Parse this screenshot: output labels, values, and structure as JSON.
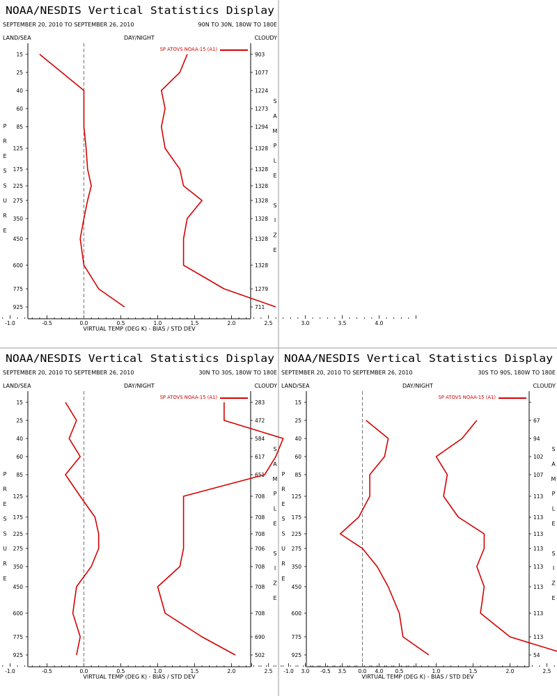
{
  "panels": [
    {
      "title": "NOAA/NESDIS Vertical Statistics Display",
      "date_range": "SEPTEMBER 20, 2010 TO SEPTEMBER 26, 2010",
      "region": "90N TO 30N, 180W TO 180E",
      "header_left": "LAND/SEA",
      "header_mid": "DAY/NIGHT",
      "header_right": "CLOUDY",
      "legend": "SP ATOVS NOAA-15 (A1)",
      "left_vertical_label": "PRESSURE",
      "right_vertical_label": "SAMPLE SIZE",
      "x_axis_label": "VIRTUAL TEMP (DEG K) - BIAS / STD DEV",
      "chart_data": {
        "type": "line",
        "pressure_levels": [
          15,
          25,
          40,
          60,
          85,
          125,
          175,
          225,
          275,
          350,
          450,
          600,
          775,
          925
        ],
        "sample_size": [
          "903",
          "1077",
          "1224",
          "1273",
          "1294",
          "1328",
          "1328",
          "1328",
          "1328",
          "1328",
          "1328",
          "1328",
          "1279",
          "711"
        ],
        "series": [
          {
            "values": [
              -0.6,
              -0.3,
              0.0,
              0.0,
              0.0,
              0.03,
              0.05,
              0.1,
              0.05,
              0.0,
              -0.05,
              0.0,
              0.2,
              0.55
            ]
          },
          {
            "values": [
              1.4,
              1.3,
              1.05,
              1.1,
              1.05,
              1.1,
              1.3,
              1.35,
              1.6,
              1.4,
              1.35,
              1.35,
              1.9,
              2.6
            ]
          }
        ],
        "xlim": [
          -1.5,
          4.5
        ],
        "xticks": [
          "-1.0",
          "-0.5",
          "0.0",
          "0.5",
          "1.0",
          "1.5",
          "2.0",
          "2.5",
          "3.0",
          "3.5",
          "4.0"
        ],
        "line_color": "#d40000"
      }
    },
    {
      "title": "NOAA/NESDIS Vertical Statistics Display",
      "date_range": "SEPTEMBER 20, 2010 TO SEPTEMBER 26, 2010",
      "region": "30N TO 30S, 180W TO 180E",
      "header_left": "LAND/SEA",
      "header_mid": "DAY/NIGHT",
      "header_right": "CLOUDY",
      "legend": "SP ATOVS NOAA-15 (A1)",
      "left_vertical_label": "PRESSURE",
      "right_vertical_label": "SAMPLE SIZE",
      "x_axis_label": "VIRTUAL TEMP (DEG K) - BIAS / STD DEV",
      "chart_data": {
        "type": "line",
        "pressure_levels": [
          15,
          25,
          40,
          60,
          85,
          125,
          175,
          225,
          275,
          350,
          450,
          600,
          775,
          925
        ],
        "sample_size": [
          "283",
          "472",
          "584",
          "617",
          "651",
          "708",
          "708",
          "708",
          "706",
          "708",
          "708",
          "708",
          "690",
          "502"
        ],
        "series": [
          {
            "values": [
              -0.25,
              -0.1,
              -0.2,
              -0.05,
              -0.25,
              -0.05,
              0.15,
              0.2,
              0.2,
              0.1,
              -0.1,
              -0.15,
              -0.05,
              -0.1
            ]
          },
          {
            "values": [
              1.9,
              1.9,
              2.7,
              2.6,
              2.45,
              1.35,
              1.35,
              1.35,
              1.35,
              1.3,
              1.0,
              1.1,
              1.6,
              2.05
            ]
          }
        ],
        "xlim": [
          -1.5,
          4.5
        ],
        "xticks": [
          "-1.0",
          "-0.5",
          "0.0",
          "0.5",
          "1.0",
          "1.5",
          "2.0",
          "2.5",
          "3.0",
          "3.5",
          "4.0"
        ],
        "line_color": "#d40000"
      }
    },
    {
      "title": "NOAA/NESDIS Vertical Statistics Display",
      "date_range": "SEPTEMBER 20, 2010 TO SEPTEMBER 26, 2010",
      "region": "30S TO 90S, 180W TO 180E",
      "header_left": "LAND/SEA",
      "header_mid": "DAY/NIGHT",
      "header_right": "CLOUDY",
      "legend": "SP ATOVS NOAA-15 (A1)",
      "left_vertical_label": "PRESSURE",
      "right_vertical_label": "SAMPLE SIZE",
      "x_axis_label": "VIRTUAL TEMP (DEG K) - BIAS / STD DEV",
      "chart_data": {
        "type": "line",
        "pressure_levels": [
          15,
          25,
          40,
          60,
          85,
          125,
          175,
          225,
          275,
          350,
          450,
          600,
          775,
          925
        ],
        "sample_size": [
          "",
          "67",
          "94",
          "102",
          "107",
          "113",
          "113",
          "113",
          "113",
          "113",
          "113",
          "113",
          "113",
          "54"
        ],
        "series": [
          {
            "values": [
              null,
              0.05,
              0.35,
              0.3,
              0.1,
              0.1,
              -0.05,
              -0.3,
              0.0,
              0.2,
              0.35,
              0.5,
              0.55,
              0.9
            ]
          },
          {
            "values": [
              null,
              1.55,
              1.35,
              1.0,
              1.15,
              1.1,
              1.3,
              1.65,
              1.65,
              1.55,
              1.65,
              1.6,
              2.0,
              2.8
            ]
          }
        ],
        "xlim": [
          -1.5,
          4.5
        ],
        "xticks": [
          "-1.0",
          "-0.5",
          "0.0",
          "0.5",
          "1.0",
          "1.5",
          "2.0",
          "2.5",
          "3.0",
          "3.5",
          "4.0"
        ],
        "line_color": "#d40000"
      }
    }
  ]
}
